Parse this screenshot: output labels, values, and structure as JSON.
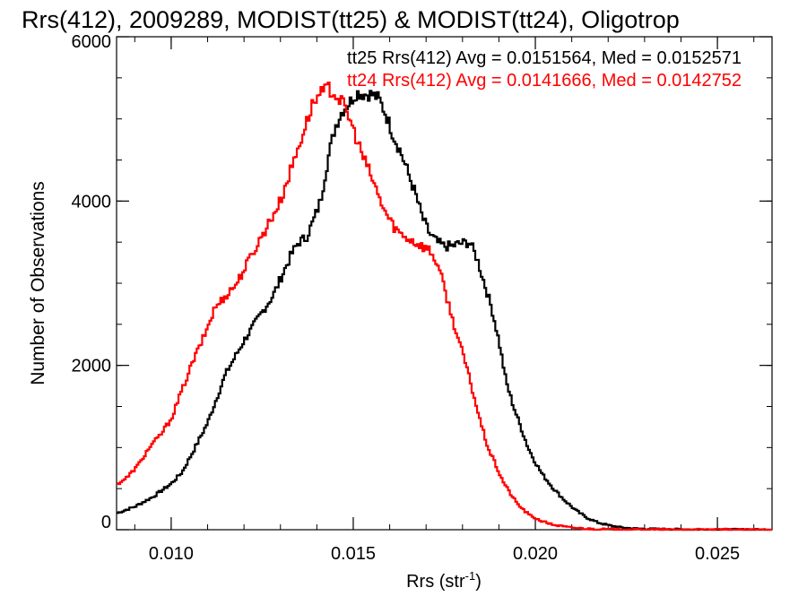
{
  "chart_data": {
    "type": "line",
    "title": "Rrs(412), 2009289, MODIST(tt25) & MODIST(tt24), Oligotrop",
    "xlabel": "Rrs (str",
    "xlabel_sup": "-1",
    "xlabel_close": ")",
    "ylabel": "Number of Observations",
    "xlim": [
      0.0085,
      0.0265
    ],
    "ylim": [
      0,
      6000
    ],
    "x_ticks": [
      0.01,
      0.015,
      0.02,
      0.025
    ],
    "x_tick_labels": [
      "0.010",
      "0.015",
      "0.020",
      "0.025"
    ],
    "y_ticks": [
      0,
      2000,
      4000,
      6000
    ],
    "y_tick_labels": [
      "0",
      "2000",
      "4000",
      "6000"
    ],
    "x_minor_step": 0.001,
    "y_minor_step": 500,
    "grid": false,
    "legend_position": "top-right",
    "series": [
      {
        "name": "tt25",
        "color": "#000000",
        "annotation": "tt25 Rrs(412) Avg = 0.0151564, Med = 0.0152571",
        "points": [
          [
            0.0085,
            200
          ],
          [
            0.009,
            280
          ],
          [
            0.0095,
            400
          ],
          [
            0.01,
            560
          ],
          [
            0.0103,
            700
          ],
          [
            0.0106,
            950
          ],
          [
            0.011,
            1300
          ],
          [
            0.0115,
            1900
          ],
          [
            0.012,
            2300
          ],
          [
            0.0125,
            2650
          ],
          [
            0.0128,
            2850
          ],
          [
            0.013,
            3050
          ],
          [
            0.0133,
            3350
          ],
          [
            0.0135,
            3500
          ],
          [
            0.0137,
            3550
          ],
          [
            0.0139,
            3750
          ],
          [
            0.0141,
            4000
          ],
          [
            0.0143,
            4500
          ],
          [
            0.0145,
            4900
          ],
          [
            0.0147,
            5100
          ],
          [
            0.0149,
            5200
          ],
          [
            0.0151,
            5320
          ],
          [
            0.0153,
            5300
          ],
          [
            0.0155,
            5300
          ],
          [
            0.0157,
            5250
          ],
          [
            0.0159,
            5050
          ],
          [
            0.0161,
            4800
          ],
          [
            0.0163,
            4600
          ],
          [
            0.0165,
            4350
          ],
          [
            0.0167,
            4100
          ],
          [
            0.0169,
            3800
          ],
          [
            0.0171,
            3600
          ],
          [
            0.0173,
            3500
          ],
          [
            0.0175,
            3450
          ],
          [
            0.0177,
            3450
          ],
          [
            0.0179,
            3480
          ],
          [
            0.0182,
            3500
          ],
          [
            0.0184,
            3300
          ],
          [
            0.0186,
            3000
          ],
          [
            0.0188,
            2700
          ],
          [
            0.019,
            2300
          ],
          [
            0.0192,
            1800
          ],
          [
            0.0194,
            1500
          ],
          [
            0.0196,
            1250
          ],
          [
            0.0198,
            1000
          ],
          [
            0.02,
            820
          ],
          [
            0.0202,
            670
          ],
          [
            0.0205,
            500
          ],
          [
            0.0208,
            360
          ],
          [
            0.0211,
            240
          ],
          [
            0.0214,
            150
          ],
          [
            0.0217,
            90
          ],
          [
            0.022,
            55
          ],
          [
            0.0223,
            30
          ],
          [
            0.0227,
            15
          ],
          [
            0.0232,
            8
          ],
          [
            0.024,
            4
          ],
          [
            0.025,
            2
          ],
          [
            0.0265,
            1
          ]
        ]
      },
      {
        "name": "tt24",
        "color": "#ff0000",
        "annotation": "tt24 Rrs(412) Avg = 0.0141666, Med = 0.0142752",
        "points": [
          [
            0.0085,
            550
          ],
          [
            0.0088,
            640
          ],
          [
            0.0091,
            790
          ],
          [
            0.0094,
            1000
          ],
          [
            0.0097,
            1150
          ],
          [
            0.01,
            1350
          ],
          [
            0.0103,
            1700
          ],
          [
            0.0106,
            2050
          ],
          [
            0.0109,
            2350
          ],
          [
            0.0112,
            2700
          ],
          [
            0.0115,
            2850
          ],
          [
            0.0118,
            3000
          ],
          [
            0.0121,
            3250
          ],
          [
            0.0124,
            3500
          ],
          [
            0.0127,
            3750
          ],
          [
            0.013,
            4000
          ],
          [
            0.0133,
            4400
          ],
          [
            0.0136,
            4800
          ],
          [
            0.0139,
            5200
          ],
          [
            0.0141,
            5300
          ],
          [
            0.0143,
            5380
          ],
          [
            0.0145,
            5300
          ],
          [
            0.0147,
            5200
          ],
          [
            0.0149,
            5000
          ],
          [
            0.0151,
            4750
          ],
          [
            0.0153,
            4500
          ],
          [
            0.0155,
            4300
          ],
          [
            0.0157,
            4050
          ],
          [
            0.0159,
            3850
          ],
          [
            0.0161,
            3700
          ],
          [
            0.0163,
            3600
          ],
          [
            0.0165,
            3550
          ],
          [
            0.0167,
            3500
          ],
          [
            0.0169,
            3450
          ],
          [
            0.0171,
            3400
          ],
          [
            0.0173,
            3250
          ],
          [
            0.0175,
            2950
          ],
          [
            0.0177,
            2600
          ],
          [
            0.0179,
            2300
          ],
          [
            0.0181,
            2000
          ],
          [
            0.0183,
            1650
          ],
          [
            0.0185,
            1300
          ],
          [
            0.0187,
            1000
          ],
          [
            0.0189,
            800
          ],
          [
            0.0191,
            600
          ],
          [
            0.0193,
            450
          ],
          [
            0.0195,
            320
          ],
          [
            0.0197,
            230
          ],
          [
            0.0199,
            160
          ],
          [
            0.0202,
            100
          ],
          [
            0.0205,
            60
          ],
          [
            0.0209,
            30
          ],
          [
            0.0214,
            12
          ],
          [
            0.022,
            5
          ],
          [
            0.023,
            2
          ],
          [
            0.0265,
            0
          ]
        ]
      }
    ]
  }
}
